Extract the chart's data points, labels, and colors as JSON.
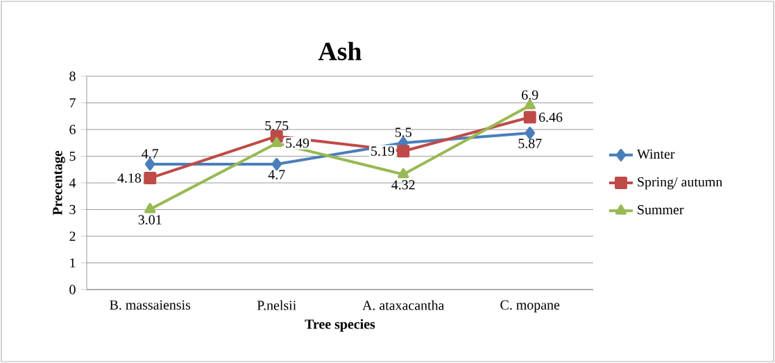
{
  "chart_data": {
    "type": "line",
    "title": "Ash",
    "xlabel": "Tree species",
    "ylabel": "Precentage",
    "categories": [
      "B. massaiensis",
      "P.nelsii",
      "A. ataxacantha",
      "C. mopane"
    ],
    "series": [
      {
        "name": "Winter",
        "color": "#4a7ebb",
        "marker": "diamond",
        "values": [
          4.7,
          4.7,
          5.5,
          5.87
        ]
      },
      {
        "name": "Spring/ autumn",
        "color": "#be4b48",
        "marker": "square",
        "values": [
          4.18,
          5.75,
          5.19,
          6.46
        ]
      },
      {
        "name": "Summer",
        "color": "#98b954",
        "marker": "triangle",
        "values": [
          3.01,
          5.49,
          4.32,
          6.9
        ]
      }
    ],
    "ylim": [
      0,
      8
    ],
    "yticks": [
      0,
      1,
      2,
      3,
      4,
      5,
      6,
      7,
      8
    ],
    "grid": "y",
    "legend": "right",
    "data_labels": true
  }
}
